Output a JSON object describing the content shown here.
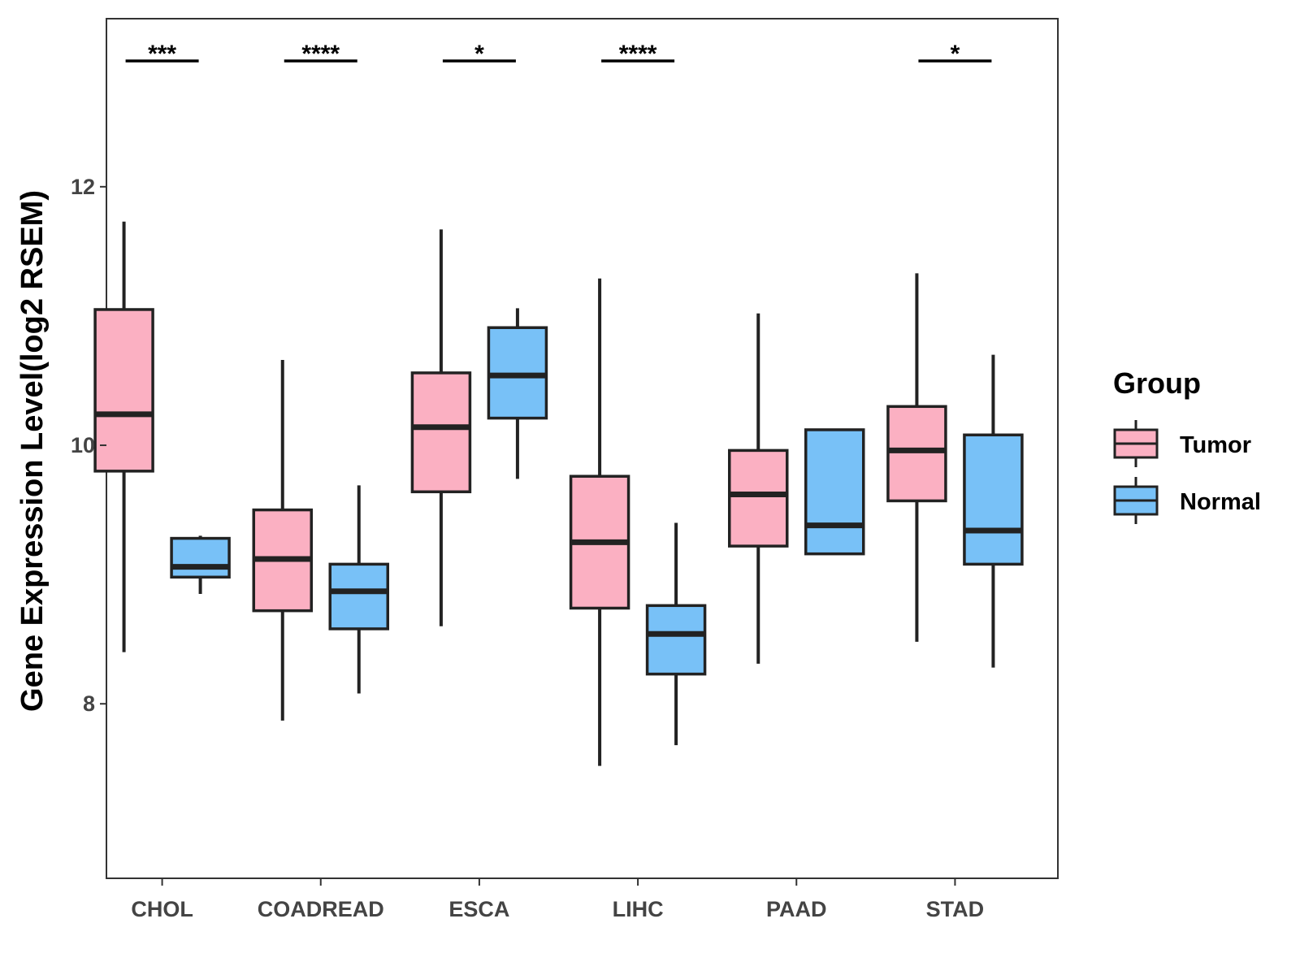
{
  "chart_data": {
    "type": "boxplot",
    "title": "",
    "xlabel": "",
    "ylabel": "Gene Expression Level(log2 RSEM)",
    "ylim": [
      6.65,
      13.3
    ],
    "yticks": [
      8,
      10,
      12
    ],
    "ytick_labels": [
      "8",
      "10",
      "12"
    ],
    "categories": [
      "CHOL",
      "COADREAD",
      "ESCA",
      "LIHC",
      "PAAD",
      "STAD"
    ],
    "series": [
      {
        "name": "Tumor",
        "color": "#FBB0C2",
        "boxes": [
          {
            "whisker_low": 8.4,
            "q1": 9.8,
            "median": 10.24,
            "q3": 11.05,
            "whisker_high": 11.73
          },
          {
            "whisker_low": 7.87,
            "q1": 8.72,
            "median": 9.12,
            "q3": 9.5,
            "whisker_high": 10.66
          },
          {
            "whisker_low": 8.6,
            "q1": 9.64,
            "median": 10.14,
            "q3": 10.56,
            "whisker_high": 11.67
          },
          {
            "whisker_low": 7.52,
            "q1": 8.74,
            "median": 9.25,
            "q3": 9.76,
            "whisker_high": 11.29
          },
          {
            "whisker_low": 8.31,
            "q1": 9.22,
            "median": 9.62,
            "q3": 9.96,
            "whisker_high": 11.02
          },
          {
            "whisker_low": 8.48,
            "q1": 9.57,
            "median": 9.96,
            "q3": 10.3,
            "whisker_high": 11.33
          }
        ]
      },
      {
        "name": "Normal",
        "color": "#78C1F7",
        "boxes": [
          {
            "whisker_low": 8.85,
            "q1": 8.98,
            "median": 9.06,
            "q3": 9.28,
            "whisker_high": 9.3
          },
          {
            "whisker_low": 8.08,
            "q1": 8.58,
            "median": 8.87,
            "q3": 9.08,
            "whisker_high": 9.69
          },
          {
            "whisker_low": 9.74,
            "q1": 10.21,
            "median": 10.54,
            "q3": 10.91,
            "whisker_high": 11.06
          },
          {
            "whisker_low": 7.68,
            "q1": 8.23,
            "median": 8.54,
            "q3": 8.76,
            "whisker_high": 9.4
          },
          {
            "whisker_low": 9.16,
            "q1": 9.16,
            "median": 9.38,
            "q3": 10.12,
            "whisker_high": 10.12
          },
          {
            "whisker_low": 8.28,
            "q1": 9.08,
            "median": 9.34,
            "q3": 10.08,
            "whisker_high": 10.7
          }
        ]
      }
    ],
    "significance": [
      "***",
      "****",
      "*",
      "****",
      "",
      "*"
    ],
    "legend": {
      "title": "Group",
      "position": "right",
      "items": [
        "Tumor",
        "Normal"
      ]
    },
    "grid": false
  }
}
